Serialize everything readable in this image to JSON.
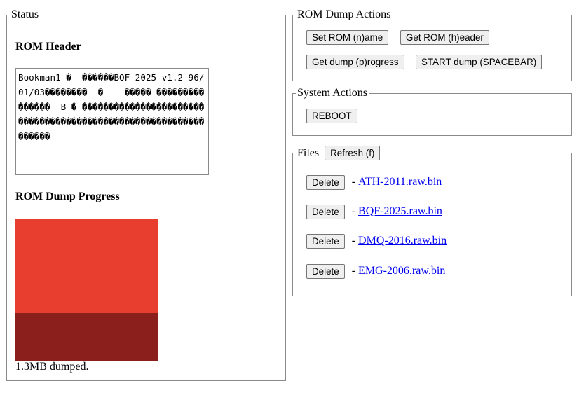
{
  "status": {
    "legend": "Status",
    "rom_header_title": "ROM Header",
    "rom_header_text": "Bookman1 �  ������BQF-2025 v1.2 96/01/03��������  �    ����� ���������������  B � ����������������������������������������������������������������",
    "progress_title": "ROM Dump Progress",
    "progress_fraction": 0.34,
    "progress_colors": {
      "remaining": "#e83e30",
      "done": "#8b1f1b"
    },
    "dumped_text": "1.3MB dumped."
  },
  "rom_actions": {
    "legend": "ROM Dump Actions",
    "buttons": {
      "set_name": "Set ROM (n)ame",
      "get_header": "Get ROM (h)eader",
      "get_progress": "Get dump (p)rogress",
      "start_dump": "START dump (SPACEBAR)"
    }
  },
  "system_actions": {
    "legend": "System Actions",
    "reboot": "REBOOT"
  },
  "files": {
    "legend": "Files",
    "refresh": "Refresh (f)",
    "items": [
      {
        "delete": "Delete",
        "sep": "-",
        "name": "ATH-2011.raw.bin"
      },
      {
        "delete": "Delete",
        "sep": "-",
        "name": "BQF-2025.raw.bin"
      },
      {
        "delete": "Delete",
        "sep": "-",
        "name": "DMQ-2016.raw.bin"
      },
      {
        "delete": "Delete",
        "sep": "-",
        "name": "EMG-2006.raw.bin"
      }
    ]
  }
}
